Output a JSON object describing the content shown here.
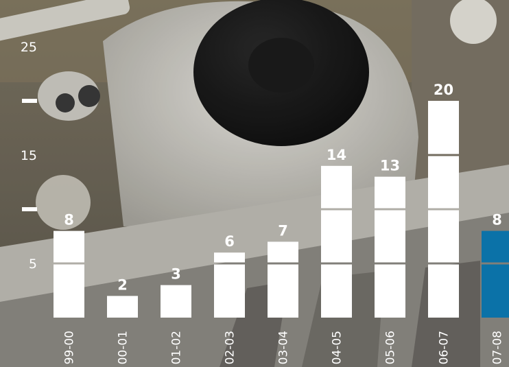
{
  "chart_data": {
    "type": "bar",
    "title": "",
    "xlabel": "",
    "ylabel": "",
    "ylim": [
      0,
      25
    ],
    "grid": false,
    "legend": "none",
    "categories": [
      "99-00",
      "00-01",
      "01-02",
      "02-03",
      "03-04",
      "04-05",
      "05-06",
      "06-07",
      "07-08"
    ],
    "values": [
      8,
      2,
      3,
      6,
      7,
      14,
      13,
      20,
      8
    ],
    "value_labels": [
      "8",
      "2",
      "3",
      "6",
      "7",
      "14",
      "13",
      "20",
      "8"
    ],
    "yticks": [
      {
        "value": 25,
        "label": "25"
      },
      {
        "value": 20,
        "label": ""
      },
      {
        "value": 15,
        "label": "15"
      },
      {
        "value": 10,
        "label": ""
      },
      {
        "value": 5,
        "label": "5"
      }
    ],
    "highlight_index": 8,
    "colors": {
      "bar": "#ffffff",
      "highlight": "#0b72a8",
      "text": "#ffffff",
      "segment_gap": "#6f6a64"
    },
    "background": "photo-of-laboratory-equipment"
  }
}
